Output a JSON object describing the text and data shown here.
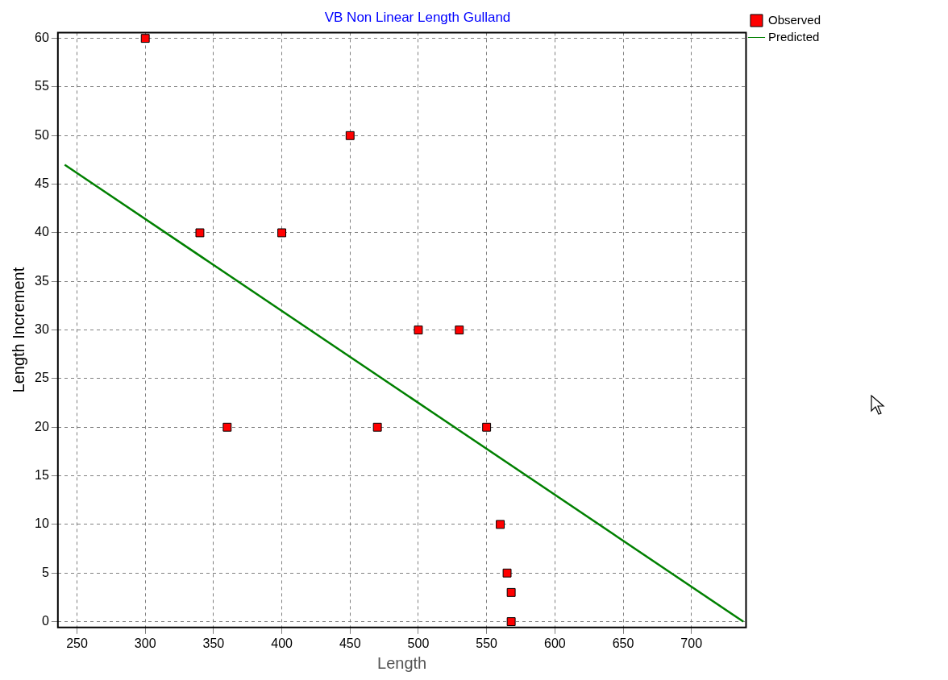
{
  "chart_data": {
    "type": "scatter",
    "title": "VB Non Linear Length Gulland",
    "xlabel": "Length",
    "ylabel": "Length Increment",
    "series": [
      {
        "name": "Observed",
        "type": "scatter",
        "color": "#ff0000",
        "marker": "square",
        "x": [
          300,
          340,
          360,
          400,
          450,
          470,
          500,
          530,
          550,
          560,
          565,
          568,
          568
        ],
        "values": [
          60,
          40,
          20,
          40,
          50,
          20,
          30,
          30,
          20,
          10,
          5,
          3,
          0
        ]
      },
      {
        "name": "Predicted",
        "type": "line",
        "color": "#008000",
        "marker": "none",
        "line_style": "solid",
        "x": [
          241,
          738
        ],
        "values": [
          47,
          0
        ]
      }
    ],
    "xlim": [
      236,
      740
    ],
    "xticks": [
      250,
      300,
      350,
      400,
      450,
      500,
      550,
      600,
      650,
      700
    ],
    "ylim": [
      -0.6,
      60.6
    ],
    "yticks": [
      0,
      5,
      10,
      15,
      20,
      25,
      30,
      35,
      40,
      45,
      50,
      55,
      60
    ],
    "grid": true,
    "legend": "top right"
  }
}
